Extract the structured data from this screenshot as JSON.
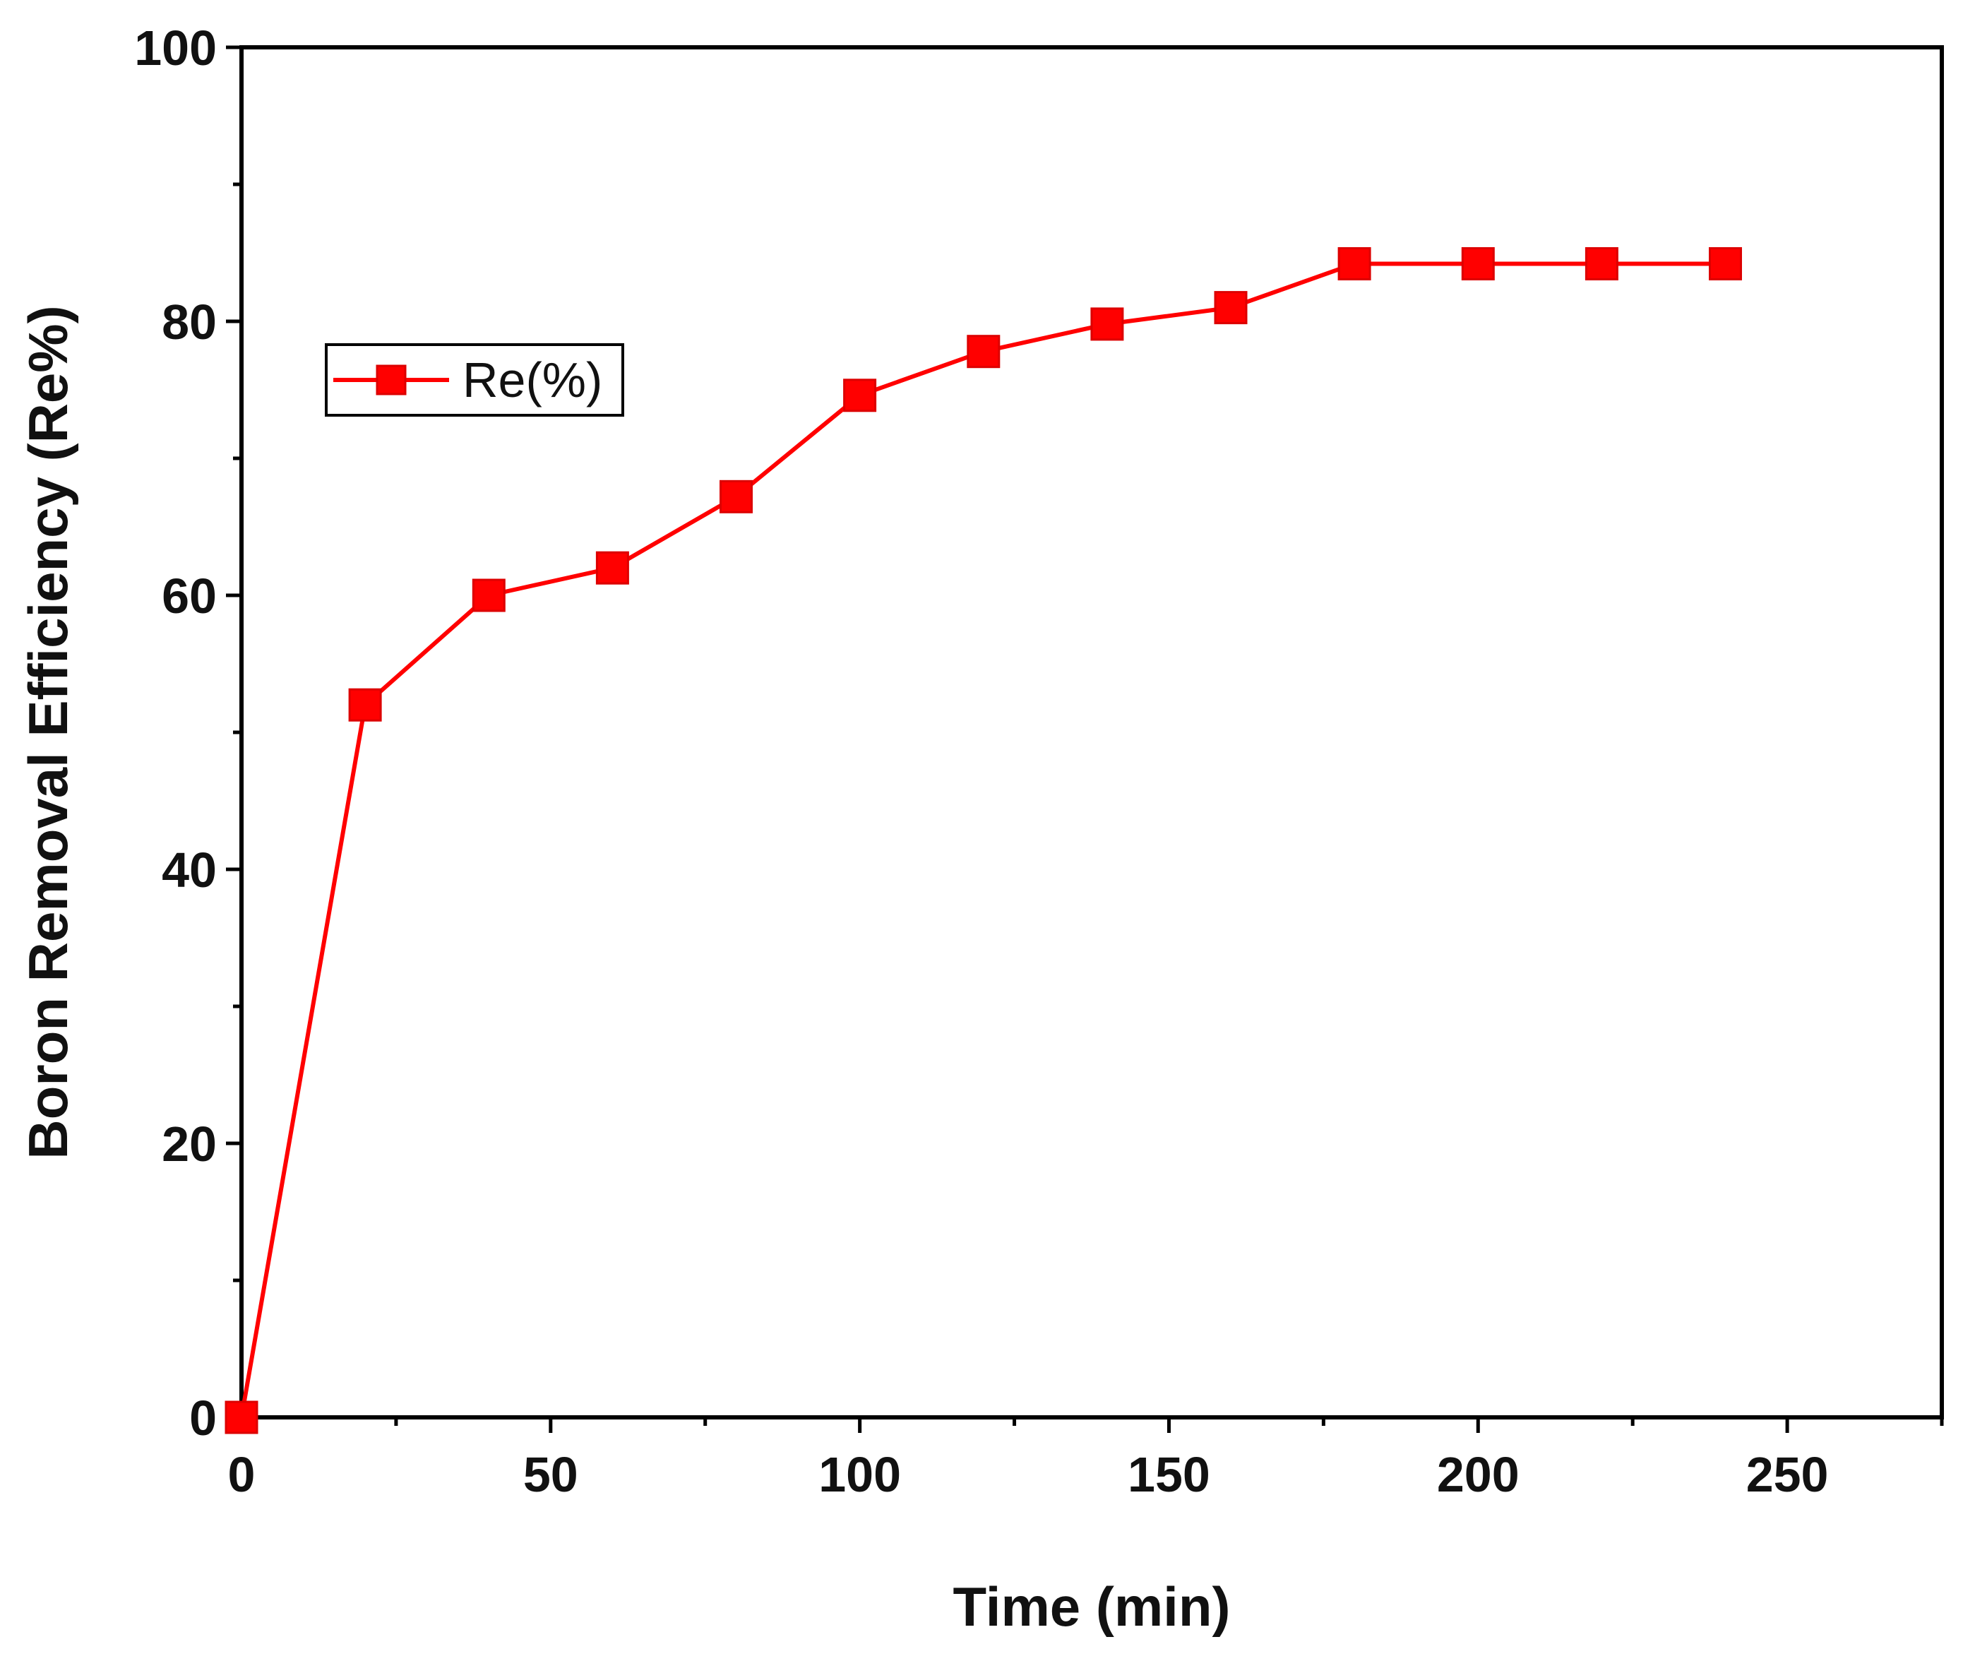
{
  "chart_data": {
    "type": "line",
    "title": "",
    "xlabel": "Time (min)",
    "ylabel": "Boron Removal  Efficiency (Re%)",
    "xlim": [
      0,
      275
    ],
    "ylim": [
      0,
      100
    ],
    "x_ticks": [
      0,
      50,
      100,
      150,
      200,
      250
    ],
    "y_ticks": [
      0,
      20,
      40,
      60,
      80,
      100
    ],
    "x_minor_step": 25,
    "y_minor_step": 10,
    "grid": false,
    "legend_position": "upper-left",
    "series": [
      {
        "name": "Re(%)",
        "color": "#ff0000",
        "marker": "square",
        "x": [
          0,
          20,
          40,
          60,
          80,
          100,
          120,
          140,
          160,
          180,
          200,
          220,
          240
        ],
        "y": [
          0,
          52,
          60,
          62,
          67.2,
          74.6,
          77.8,
          79.8,
          81,
          84.2,
          84.2,
          84.2,
          84.2
        ]
      }
    ]
  }
}
